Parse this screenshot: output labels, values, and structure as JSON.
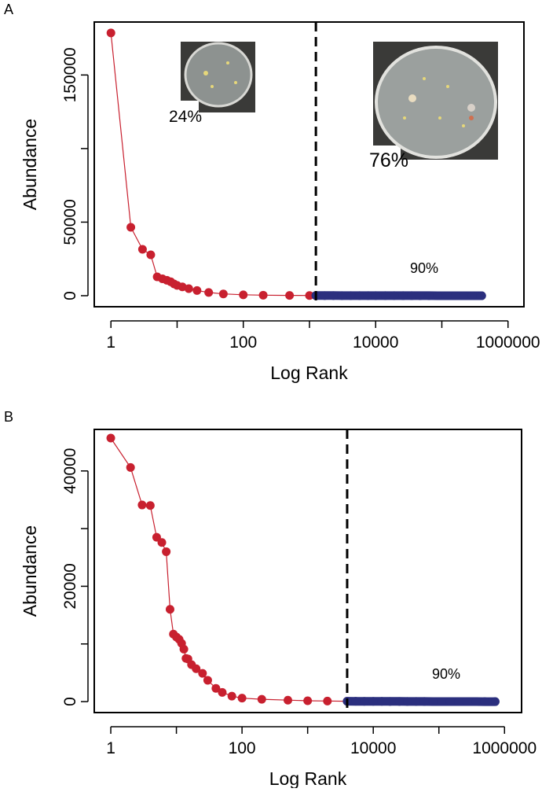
{
  "chart_data": [
    {
      "type": "scatter",
      "panel_label": "A",
      "x_label": "Log Rank",
      "y_label": "Abundance",
      "xscale": "log",
      "xlim": [
        0.56,
        1740000
      ],
      "ylim": [
        -7500,
        186000
      ],
      "xticks": [
        1,
        {
          "value": 10,
          "label": null
        },
        100,
        {
          "value": 1000,
          "label": null
        },
        10000,
        {
          "value": 100000,
          "label": null
        },
        1000000
      ],
      "yticks": [
        0,
        50000,
        {
          "value": 100000,
          "label": null
        },
        150000
      ],
      "threshold_x": 1250,
      "annotations": [
        "24%",
        "76%",
        "90%"
      ],
      "series": [
        {
          "color": "#c8202f",
          "x": [
            1,
            2,
            3,
            4,
            5,
            6,
            7,
            8,
            9,
            10,
            12,
            15,
            20,
            30,
            50,
            100,
            200,
            500,
            1000,
            1250
          ],
          "values": [
            178600,
            46500,
            31500,
            27800,
            12800,
            11500,
            10500,
            9500,
            8000,
            7000,
            6000,
            4800,
            3500,
            2200,
            1200,
            600,
            350,
            200,
            120,
            100
          ]
        },
        {
          "color": "#2b2f7e",
          "x": [
            1250,
            1700,
            2300,
            3100,
            4200,
            5700,
            7700,
            10000,
            14000,
            19000,
            26000,
            35000,
            47000,
            64000,
            87000,
            120000,
            160000,
            215000,
            290000,
            400000
          ],
          "values": [
            90,
            80,
            70,
            62,
            55,
            48,
            42,
            36,
            31,
            26,
            22,
            18,
            15,
            12,
            9,
            7,
            5,
            3,
            2,
            1
          ]
        }
      ]
    },
    {
      "type": "scatter",
      "panel_label": "B",
      "x_label": "Log Rank",
      "y_label": "Abundance",
      "xscale": "log",
      "xlim": [
        0.56,
        1820000
      ],
      "ylim": [
        -1900,
        47200
      ],
      "xticks": [
        1,
        {
          "value": 10,
          "label": null
        },
        100,
        {
          "value": 1000,
          "label": null
        },
        10000,
        {
          "value": 100000,
          "label": null
        },
        1000000
      ],
      "yticks": [
        0,
        {
          "value": 10000,
          "label": null
        },
        20000,
        {
          "value": 30000,
          "label": null
        },
        40000
      ],
      "threshold_x": 4000,
      "annotations": [
        "90%"
      ],
      "series": [
        {
          "color": "#c8202f",
          "x": [
            1,
            2,
            3,
            4,
            5,
            6,
            7,
            8,
            9,
            10,
            11,
            12,
            13,
            14,
            15,
            17,
            20,
            25,
            30,
            40,
            50,
            70,
            100,
            200,
            500,
            1000,
            2000,
            4000
          ],
          "values": [
            45700,
            40600,
            34100,
            34000,
            28500,
            27600,
            26000,
            16000,
            11700,
            11200,
            10800,
            10100,
            9100,
            7500,
            7400,
            6400,
            5700,
            4900,
            3700,
            2300,
            1600,
            950,
            600,
            400,
            250,
            150,
            100,
            60
          ]
        },
        {
          "color": "#2b2f7e",
          "x": [
            4000,
            5400,
            7300,
            10000,
            13500,
            18000,
            25000,
            33000,
            45000,
            60000,
            82000,
            110000,
            150000,
            200000,
            270000,
            370000,
            500000,
            720000
          ],
          "values": [
            60,
            55,
            50,
            45,
            40,
            35,
            30,
            26,
            22,
            18,
            15,
            12,
            9,
            7,
            5,
            3,
            2,
            1
          ]
        }
      ]
    }
  ]
}
